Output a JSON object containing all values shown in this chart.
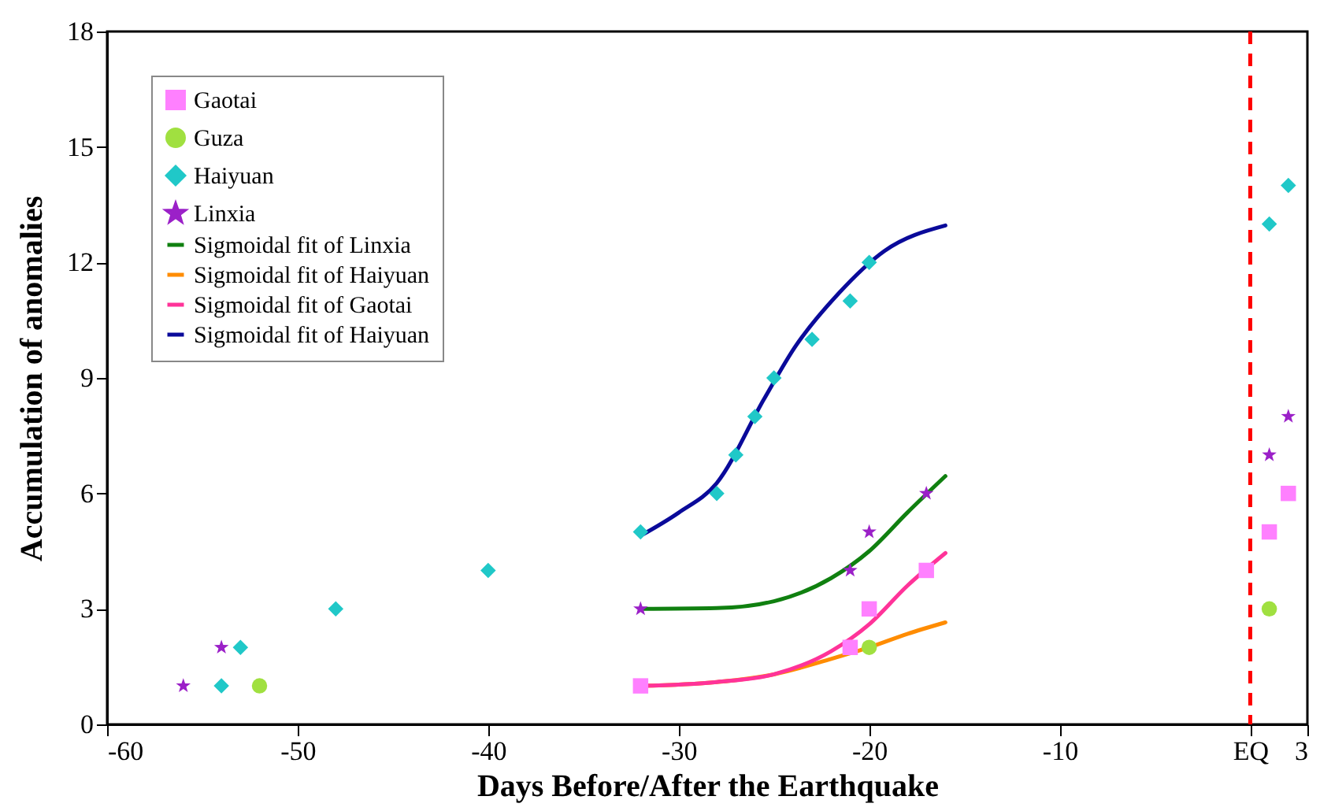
{
  "chart_data": {
    "type": "scatter",
    "xlabel": "Days Before/After the Earthquake",
    "ylabel": "Accumulation of anomalies",
    "xlim": [
      -60,
      3
    ],
    "xticks": [
      -60,
      -50,
      -40,
      -30,
      -20,
      -10,
      {
        "value": 0,
        "label": "EQ"
      },
      3
    ],
    "ylim": [
      0,
      18
    ],
    "yticks": [
      0,
      3,
      6,
      9,
      12,
      15,
      18
    ],
    "grid": false,
    "legend": "top left",
    "ref_lines": [
      {
        "axis": "x",
        "value": 0,
        "color": "#ff0000",
        "line_style": "dashed"
      }
    ],
    "series": [
      {
        "name": "Gaotai",
        "marker": "square",
        "color": "#ff80ff",
        "x": [
          -32,
          -21,
          -20,
          -17,
          1,
          2
        ],
        "values": [
          1,
          2,
          3,
          4,
          5,
          6
        ]
      },
      {
        "name": "Guza",
        "marker": "circle",
        "color": "#a0e040",
        "x": [
          -52,
          -20,
          1
        ],
        "values": [
          1,
          2,
          3
        ]
      },
      {
        "name": "Haiyuan",
        "marker": "diamond",
        "color": "#20c8c8",
        "x": [
          -54,
          -53,
          -48,
          -40,
          -32,
          -28,
          -27,
          -26,
          -25,
          -23,
          -21,
          -20,
          1,
          2
        ],
        "values": [
          1,
          2,
          3,
          4,
          5,
          6,
          7,
          8,
          9,
          10,
          11,
          12,
          13,
          14
        ]
      },
      {
        "name": "Linxia",
        "marker": "star",
        "color": "#9b20c8",
        "x": [
          -56,
          -54,
          -32,
          -21,
          -20,
          -17,
          1,
          2
        ],
        "values": [
          1,
          2,
          3,
          4,
          5,
          6,
          7,
          8
        ]
      },
      {
        "name": "Sigmoidal fit of Linxia",
        "type": "line",
        "line_style": "solid",
        "color": "#108010",
        "x": [
          -32,
          -28,
          -25,
          -22,
          -20,
          -18,
          -16
        ],
        "values": [
          3.0,
          3.02,
          3.2,
          3.8,
          4.5,
          5.5,
          6.45
        ]
      },
      {
        "name": "Sigmoidal fit of Haiyuan",
        "type": "line",
        "line_style": "solid",
        "color": "#ff8c00",
        "x": [
          -32,
          -28,
          -25,
          -22,
          -20,
          -18,
          -16
        ],
        "values": [
          1.0,
          1.1,
          1.3,
          1.7,
          2.0,
          2.35,
          2.65
        ]
      },
      {
        "name": "Sigmoidal fit of Gaotai",
        "type": "line",
        "line_style": "solid",
        "color": "#ff3399",
        "x": [
          -32,
          -28,
          -25,
          -22,
          -20,
          -18,
          -16
        ],
        "values": [
          1.0,
          1.1,
          1.3,
          1.9,
          2.6,
          3.6,
          4.45
        ]
      },
      {
        "name": "Sigmoidal fit of Haiyuan",
        "type": "line",
        "line_style": "solid",
        "color": "#0a0a9a",
        "x": [
          -32,
          -30,
          -28,
          -25.5,
          -23.9,
          -21.6,
          -19.2,
          -16
        ],
        "values": [
          4.9,
          5.5,
          6.27,
          8.47,
          9.8,
          11.2,
          12.3,
          12.96
        ]
      }
    ]
  }
}
